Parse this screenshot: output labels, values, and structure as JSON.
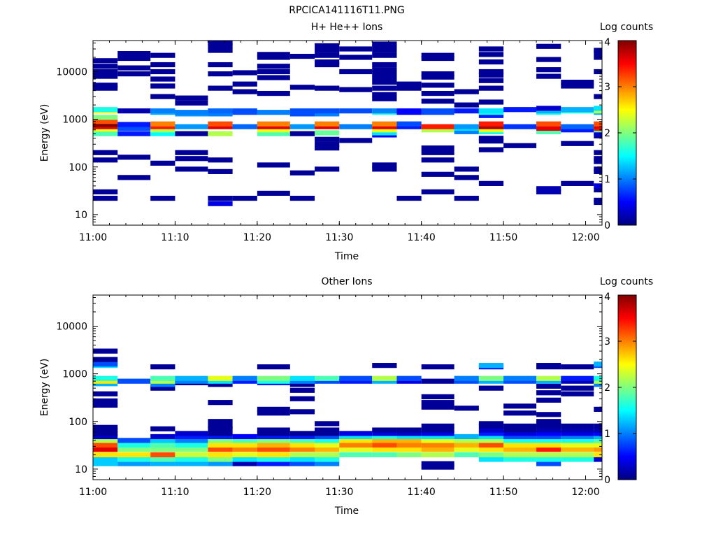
{
  "figure": {
    "title": "RPCICA141116T11.PNG"
  },
  "colorbar": {
    "stops": [
      "#00007f",
      "#0000ff",
      "#007fff",
      "#00ffff",
      "#7fff7f",
      "#ffff00",
      "#ff7f00",
      "#ff0000",
      "#7f0000"
    ]
  },
  "chart_data": [
    {
      "type": "heatmap",
      "title": "H+ He++ Ions",
      "xlabel": "Time",
      "ylabel": "Energy (eV)",
      "xlim": [
        "11:00",
        "12:02"
      ],
      "ylim": [
        6,
        45000
      ],
      "y_scale": "log",
      "xticks": [
        "11:00",
        "11:10",
        "11:20",
        "11:30",
        "11:40",
        "11:50",
        "12:00"
      ],
      "yticks": [
        "10",
        "100",
        "1000",
        "10000"
      ],
      "colorbar": {
        "label": "Log counts",
        "range": [
          0,
          4
        ],
        "ticks": [
          "0",
          "1",
          "2",
          "3",
          "4"
        ]
      },
      "time_bins": [
        "11:00",
        "11:03",
        "11:07",
        "11:10",
        "11:14",
        "11:17",
        "11:20",
        "11:24",
        "11:27",
        "11:30",
        "11:34",
        "11:37",
        "11:40",
        "11:44",
        "11:47",
        "11:50",
        "11:54",
        "11:57",
        "12:01"
      ],
      "energy_values": [
        [
          22,
          30,
          140,
          200,
          500,
          620,
          700,
          780,
          900,
          1100,
          1500,
          1600,
          4500,
          5200,
          8000,
          10000,
          13000,
          17000
        ],
        [
          60,
          160,
          500,
          650,
          780,
          1500,
          9000,
          12000,
          19000,
          24000
        ],
        [
          22,
          120,
          500,
          600,
          700,
          800,
          1400,
          1500,
          3000,
          5000,
          7000,
          10000,
          14000,
          22000
        ],
        [
          90,
          150,
          200,
          500,
          700,
          1300,
          1400,
          2200,
          2800
        ],
        [
          17,
          22,
          80,
          140,
          500,
          700,
          800,
          1300,
          1500,
          4500,
          9000,
          14000,
          28000,
          35000,
          40000
        ],
        [
          22,
          700,
          1400,
          1500,
          3800,
          5500,
          9500
        ],
        [
          28,
          110,
          500,
          600,
          700,
          800,
          1400,
          3500,
          7500,
          10000,
          13000,
          20000,
          23000
        ],
        [
          22,
          75,
          500,
          700,
          1300,
          1500,
          4700,
          21000
        ],
        [
          90,
          250,
          300,
          380,
          520,
          700,
          800,
          1300,
          1500,
          4500,
          14000,
          16000,
          22000,
          28000,
          35000
        ],
        [
          360,
          700,
          1500,
          4200,
          10000,
          20000,
          30000
        ],
        [
          90,
          110,
          470,
          520,
          600,
          700,
          800,
          1400,
          1500,
          2700,
          3300,
          4500,
          6000,
          7500,
          9500,
          11000,
          14000,
          22000,
          28000,
          33000,
          38000
        ],
        [
          22,
          700,
          800,
          1400,
          1500,
          4500,
          5500
        ],
        [
          30,
          70,
          140,
          200,
          250,
          600,
          700,
          1400,
          1500,
          2400,
          3500,
          5200,
          7700,
          9000,
          19000,
          22000
        ],
        [
          22,
          60,
          90,
          550,
          650,
          700,
          1500,
          2000,
          3800
        ],
        [
          45,
          230,
          350,
          400,
          550,
          600,
          700,
          800,
          1200,
          1400,
          1500,
          2300,
          4500,
          6500,
          8500,
          10000,
          16000,
          23000,
          30000
        ],
        [
          280,
          700,
          1600
        ],
        [
          30,
          35,
          550,
          650,
          800,
          1400,
          1500,
          1700,
          8000,
          11000,
          18000,
          34000
        ],
        [
          45,
          310,
          600,
          700,
          1500,
          1600,
          5000,
          6000
        ],
        [
          18,
          20,
          33,
          40,
          80,
          90,
          130,
          150,
          200,
          450,
          500,
          600,
          650,
          700,
          800,
          1400,
          1500,
          1700,
          3000,
          10000,
          20000,
          25000,
          28000
        ]
      ],
      "log_counts": [
        [
          0.1,
          0.1,
          0.1,
          0.1,
          1.8,
          2.4,
          3.6,
          4.0,
          3.2,
          2.0,
          2.5,
          1.6,
          0.1,
          0.1,
          0.1,
          0.1,
          0.1,
          0.1
        ],
        [
          0.1,
          0.1,
          0.6,
          0.8,
          0.6,
          0.2,
          0.1,
          0.1,
          0.1,
          0.1
        ],
        [
          0.1,
          0.1,
          1.5,
          2.2,
          3.4,
          3.0,
          1.2,
          1.0,
          0.1,
          0.1,
          0.1,
          0.1,
          0.1,
          0.1
        ],
        [
          0.1,
          0.1,
          0.1,
          0.1,
          1.1,
          1.1,
          1.0,
          0.1,
          0.1
        ],
        [
          0.4,
          0.1,
          0.1,
          0.1,
          2.2,
          3.6,
          3.2,
          1.0,
          0.9,
          0.1,
          0.1,
          0.1,
          0.1,
          0.1,
          0.1
        ],
        [
          0.1,
          0.9,
          0.8,
          0.8,
          0.1,
          0.1,
          0.1
        ],
        [
          0.1,
          0.1,
          1.8,
          2.4,
          3.6,
          3.0,
          1.0,
          0.1,
          0.1,
          0.1,
          0.1,
          0.1,
          0.1
        ],
        [
          0.1,
          0.1,
          0.1,
          1.1,
          0.8,
          0.8,
          0.1,
          0.1
        ],
        [
          0.1,
          0.1,
          0.1,
          0.1,
          1.9,
          3.6,
          3.0,
          1.0,
          0.8,
          0.1,
          0.1,
          0.1,
          0.1,
          0.1,
          0.1
        ],
        [
          0.1,
          1.0,
          0.8,
          0.1,
          0.1,
          0.1,
          0.1
        ],
        [
          0.1,
          0.1,
          0.5,
          1.4,
          2.4,
          3.6,
          3.0,
          1.6,
          1.0,
          0.1,
          0.1,
          0.1,
          0.1,
          0.1,
          0.1,
          0.1,
          0.1,
          0.1,
          0.1,
          0.1,
          0.1
        ],
        [
          0.1,
          0.6,
          0.8,
          0.5,
          0.5,
          0.1,
          0.1
        ],
        [
          0.1,
          0.1,
          0.1,
          0.1,
          0.1,
          2.2,
          3.4,
          0.8,
          0.8,
          0.1,
          0.1,
          0.1,
          0.1,
          0.1,
          0.1,
          0.1
        ],
        [
          0.1,
          0.1,
          0.1,
          1.0,
          1.4,
          1.1,
          0.6,
          0.1,
          0.1
        ],
        [
          0.1,
          0.1,
          0.1,
          0.1,
          1.5,
          2.4,
          3.8,
          3.4,
          0.6,
          1.6,
          1.4,
          0.1,
          0.1,
          0.1,
          0.1,
          0.1,
          0.1,
          0.1,
          0.1
        ],
        [
          0.1,
          0.7,
          0.6
        ],
        [
          0.2,
          0.2,
          1.8,
          3.6,
          3.2,
          1.6,
          1.2,
          0.3,
          0.1,
          0.1,
          0.1,
          0.1
        ],
        [
          0.1,
          0.1,
          0.6,
          0.9,
          1.6,
          1.2,
          0.1,
          0.1
        ],
        [
          0.1,
          0.1,
          0.1,
          0.4,
          0.1,
          0.1,
          0.1,
          0.1,
          0.1,
          0.1,
          0.3,
          1.8,
          3.4,
          3.6,
          3.2,
          1.2,
          2.2,
          1.4,
          0.1,
          0.1,
          0.1,
          0.1,
          0.1
        ]
      ]
    },
    {
      "type": "heatmap",
      "title": "Other Ions",
      "xlabel": "Time",
      "ylabel": "Energy (eV)",
      "xlim": [
        "11:00",
        "12:02"
      ],
      "ylim": [
        6,
        45000
      ],
      "y_scale": "log",
      "xticks": [
        "11:00",
        "11:10",
        "11:20",
        "11:30",
        "11:40",
        "11:50",
        "12:00"
      ],
      "yticks": [
        "10",
        "100",
        "1000",
        "10000"
      ],
      "colorbar": {
        "label": "Log counts",
        "range": [
          0,
          4
        ],
        "ticks": [
          "0",
          "1",
          "2",
          "3",
          "4"
        ]
      },
      "time_bins": [
        "11:00",
        "11:03",
        "11:07",
        "11:10",
        "11:14",
        "11:17",
        "11:20",
        "11:24",
        "11:27",
        "11:30",
        "11:34",
        "11:37",
        "11:40",
        "11:44",
        "11:47",
        "11:50",
        "11:54",
        "11:57",
        "12:01"
      ],
      "energy_values": [
        [
          13,
          16,
          20,
          26,
          32,
          40,
          48,
          56,
          66,
          75,
          220,
          270,
          380,
          620,
          700,
          800,
          1500,
          1600,
          2000,
          3000
        ],
        [
          13,
          16,
          20,
          26,
          32,
          40,
          700
        ],
        [
          13,
          16,
          20,
          26,
          32,
          40,
          48,
          70,
          500,
          600,
          700,
          800,
          1400
        ],
        [
          13,
          16,
          20,
          26,
          32,
          40,
          48,
          56,
          650,
          700,
          800
        ],
        [
          13,
          16,
          20,
          26,
          32,
          40,
          48,
          56,
          70,
          80,
          100,
          250,
          600,
          700,
          800
        ],
        [
          13,
          16,
          20,
          26,
          32,
          40,
          48,
          700,
          800
        ],
        [
          13,
          16,
          20,
          26,
          32,
          40,
          48,
          56,
          66,
          150,
          180,
          650,
          700,
          800,
          1400
        ],
        [
          13,
          16,
          20,
          26,
          32,
          40,
          48,
          56,
          160,
          300,
          450,
          600,
          700,
          800
        ],
        [
          13,
          16,
          20,
          26,
          32,
          40,
          48,
          56,
          66,
          90,
          700,
          800
        ],
        [
          20,
          26,
          32,
          40,
          48,
          56,
          700,
          800
        ],
        [
          20,
          26,
          32,
          40,
          48,
          56,
          66,
          700,
          800,
          1500
        ],
        [
          20,
          26,
          32,
          40,
          48,
          56,
          66,
          700,
          800
        ],
        [
          11,
          13,
          20,
          26,
          32,
          40,
          48,
          56,
          66,
          80,
          200,
          250,
          330,
          700,
          1400
        ],
        [
          20,
          26,
          32,
          40,
          48,
          190,
          700,
          800
        ],
        [
          16,
          20,
          26,
          32,
          40,
          48,
          56,
          66,
          80,
          90,
          500,
          700,
          800,
          1400,
          1500
        ],
        [
          16,
          20,
          26,
          32,
          40,
          48,
          56,
          66,
          80,
          150,
          210,
          700,
          800
        ],
        [
          13,
          16,
          20,
          26,
          32,
          40,
          48,
          56,
          66,
          80,
          90,
          100,
          140,
          280,
          400,
          550,
          700,
          800,
          1400,
          1500
        ],
        [
          16,
          20,
          26,
          32,
          40,
          48,
          56,
          66,
          80,
          380,
          500,
          700,
          800,
          1400
        ],
        [
          16,
          20,
          26,
          32,
          40,
          48,
          56,
          66,
          80,
          180,
          600,
          700,
          800,
          1500,
          1600
        ]
      ],
      "log_counts": [
        [
          1.3,
          1.3,
          2.6,
          3.6,
          3.2,
          2.2,
          0.3,
          0.1,
          0.1,
          0.1,
          0.1,
          0.1,
          0.1,
          1.2,
          2.6,
          1.6,
          1.4,
          0.8,
          0.1,
          0.1
        ],
        [
          1.1,
          1.6,
          2.6,
          2.0,
          1.6,
          0.8,
          0.8
        ],
        [
          1.2,
          1.8,
          3.2,
          2.0,
          1.8,
          1.3,
          0.3,
          0.1,
          0.1,
          1.0,
          2.2,
          1.8,
          0.1
        ],
        [
          1.2,
          1.6,
          2.3,
          2.0,
          1.6,
          1.0,
          0.6,
          0.3,
          0.1,
          1.0,
          1.2
        ],
        [
          1.1,
          2.0,
          2.6,
          3.2,
          2.6,
          2.0,
          0.6,
          0.1,
          0.1,
          0.1,
          0.1,
          0.1,
          0.1,
          1.4,
          2.4
        ],
        [
          0.2,
          1.4,
          2.4,
          3.0,
          2.6,
          1.8,
          0.5,
          0.6,
          1.0
        ],
        [
          0.6,
          1.6,
          2.6,
          3.2,
          2.8,
          2.0,
          0.6,
          0.1,
          0.1,
          0.1,
          0.1,
          0.6,
          1.6,
          2.0,
          0.1
        ],
        [
          0.8,
          1.4,
          2.2,
          3.0,
          2.6,
          1.8,
          0.6,
          0.1,
          0.1,
          0.1,
          0.1,
          0.1,
          1.0,
          1.4
        ],
        [
          1.0,
          1.6,
          2.2,
          2.8,
          2.4,
          1.6,
          0.8,
          0.1,
          0.1,
          0.1,
          0.8,
          1.8
        ],
        [
          1.8,
          2.4,
          3.0,
          2.6,
          1.4,
          0.4,
          0.6,
          0.8
        ],
        [
          1.8,
          2.6,
          3.2,
          2.8,
          1.6,
          0.4,
          0.1,
          1.2,
          2.2,
          0.1
        ],
        [
          2.0,
          2.6,
          3.0,
          2.8,
          1.4,
          0.3,
          0.1,
          0.4,
          0.8
        ],
        [
          0.1,
          0.1,
          2.2,
          2.8,
          3.0,
          2.4,
          1.4,
          0.4,
          0.1,
          0.1,
          0.1,
          0.1,
          0.1,
          0.1,
          0.1
        ],
        [
          1.8,
          2.4,
          2.8,
          2.2,
          1.2,
          0.1,
          0.8,
          1.0
        ],
        [
          1.4,
          2.0,
          2.6,
          3.2,
          2.2,
          1.4,
          0.6,
          0.3,
          0.1,
          0.1,
          0.1,
          1.2,
          2.0,
          0.6,
          1.2
        ],
        [
          1.6,
          2.2,
          2.8,
          2.6,
          1.6,
          0.8,
          0.4,
          0.1,
          0.1,
          0.1,
          0.1,
          0.8,
          1.0
        ],
        [
          0.8,
          1.6,
          2.2,
          3.4,
          2.6,
          1.6,
          0.8,
          0.5,
          0.2,
          0.1,
          0.1,
          0.1,
          0.1,
          0.1,
          0.1,
          0.1,
          1.2,
          2.2,
          0.1,
          0.1
        ],
        [
          1.6,
          2.2,
          2.8,
          2.4,
          1.6,
          1.0,
          0.4,
          0.2,
          0.1,
          0.1,
          0.1,
          0.2,
          0.6,
          0.1
        ],
        [
          0.3,
          2.6,
          2.9,
          2.4,
          1.8,
          1.2,
          0.5,
          0.2,
          0.1,
          0.1,
          1.0,
          2.2,
          1.6,
          0.8,
          1.2
        ]
      ]
    }
  ]
}
